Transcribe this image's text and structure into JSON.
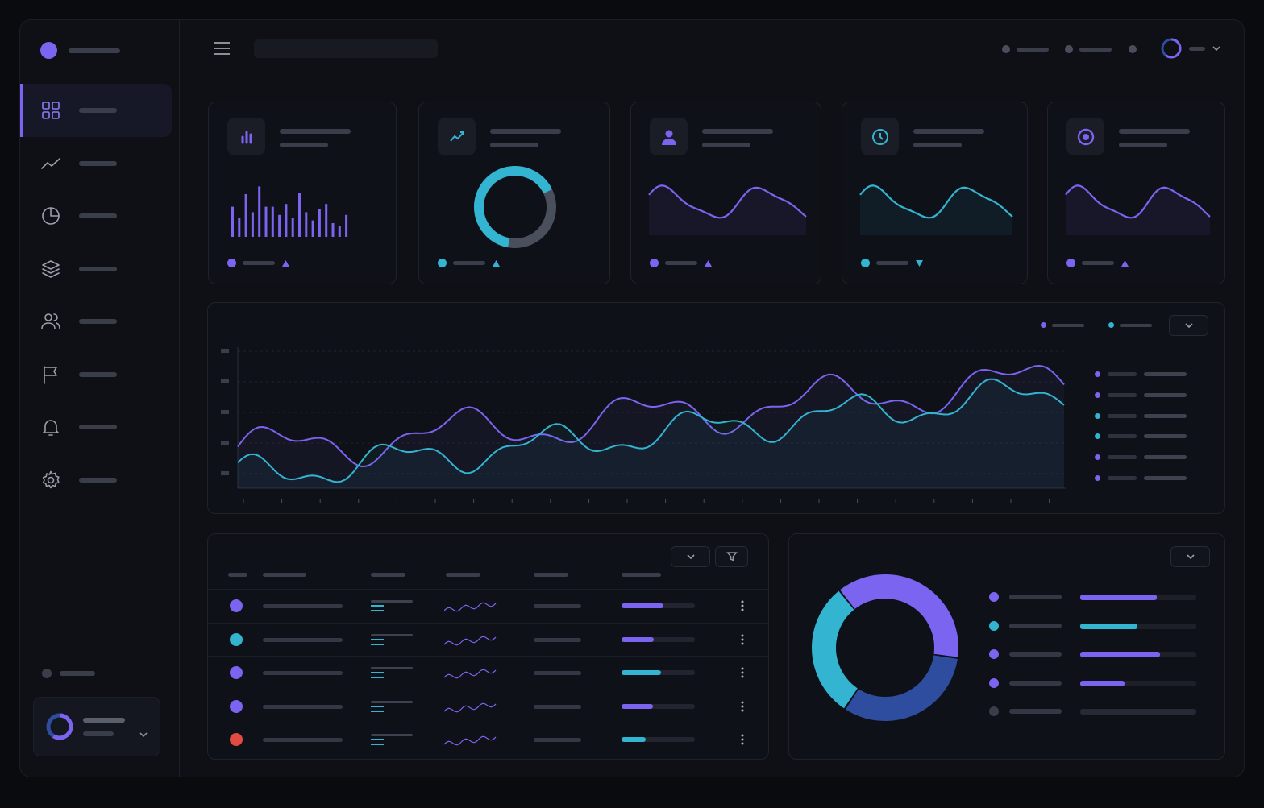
{
  "colors": {
    "purple": "#7a64f0",
    "cyan": "#33b4d0",
    "blue": "#2f4d9f",
    "red": "#e24a44",
    "muted": "#3a3e4a",
    "bg": "#0e1016"
  },
  "sidebar": {
    "items": [
      {
        "icon": "grid-icon",
        "active": true
      },
      {
        "icon": "trend-line-icon"
      },
      {
        "icon": "pie-chart-icon"
      },
      {
        "icon": "layers-icon"
      },
      {
        "icon": "users-icon"
      },
      {
        "icon": "flag-icon"
      },
      {
        "icon": "bell-icon"
      },
      {
        "icon": "gear-icon"
      }
    ]
  },
  "stat_cards": [
    {
      "icon": "bar-chart-icon",
      "accent": "#7a64f0",
      "trend": "up",
      "kind": "bars",
      "bars": [
        0.55,
        0.35,
        0.78,
        0.45,
        0.92,
        0.55,
        0.55,
        0.4,
        0.6,
        0.35,
        0.8,
        0.45,
        0.3,
        0.5,
        0.6,
        0.25,
        0.2,
        0.4
      ]
    },
    {
      "icon": "trending-up-icon",
      "accent": "#33b4d0",
      "trend": "up",
      "kind": "donut",
      "fraction": 0.65
    },
    {
      "icon": "user-icon",
      "accent": "#7a64f0",
      "trend": "up",
      "kind": "wave"
    },
    {
      "icon": "clock-icon",
      "accent": "#33b4d0",
      "trend": "down",
      "kind": "wave"
    },
    {
      "icon": "target-icon",
      "accent": "#7a64f0",
      "trend": "up",
      "kind": "wave"
    }
  ],
  "main_chart_legend": [
    {
      "color": "#7a64f0"
    },
    {
      "color": "#7a64f0"
    },
    {
      "color": "#33b4d0"
    },
    {
      "color": "#33b4d0"
    },
    {
      "color": "#7a64f0"
    },
    {
      "color": "#7a64f0"
    }
  ],
  "table_rows": [
    {
      "status_color": "#7a64f0",
      "progress": 0.57,
      "bar_color": "#7a64f0"
    },
    {
      "status_color": "#33b4d0",
      "progress": 0.44,
      "bar_color": "#7a64f0"
    },
    {
      "status_color": "#7a64f0",
      "progress": 0.54,
      "bar_color": "#33b4d0"
    },
    {
      "status_color": "#7a64f0",
      "progress": 0.43,
      "bar_color": "#7a64f0"
    },
    {
      "status_color": "#e24a44",
      "progress": 0.33,
      "bar_color": "#33b4d0"
    }
  ],
  "donut": {
    "segments": [
      {
        "color": "#7a64f0",
        "value": 0.38
      },
      {
        "color": "#2f4d9f",
        "value": 0.32
      },
      {
        "color": "#33b4d0",
        "value": 0.3
      }
    ],
    "legend": [
      {
        "color": "#7a64f0",
        "progress": 0.66
      },
      {
        "color": "#33b4d0",
        "progress": 0.49
      },
      {
        "color": "#7a64f0",
        "progress": 0.69
      },
      {
        "color": "#7a64f0",
        "progress": 0.38
      },
      {
        "color": "#3a3e4a",
        "progress": 1.0
      }
    ]
  }
}
